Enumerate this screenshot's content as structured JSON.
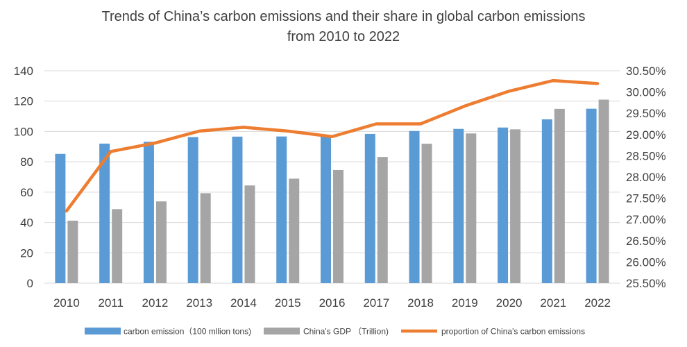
{
  "chart_data": {
    "type": "bar",
    "title_line1": "Trends of China’s carbon emissions and their share in global carbon emissions",
    "title_line2": "from 2010 to 2022",
    "categories": [
      "2010",
      "2011",
      "2012",
      "2013",
      "2014",
      "2015",
      "2016",
      "2017",
      "2018",
      "2019",
      "2020",
      "2021",
      "2022"
    ],
    "series": [
      {
        "name": "carbon emission（100 mllion tons)",
        "kind": "bar",
        "axis": "left",
        "color": "#5b9bd5",
        "values": [
          85.2,
          92.0,
          93.2,
          96.3,
          96.6,
          96.7,
          96.6,
          98.4,
          100.3,
          101.7,
          102.6,
          108.0,
          115.0
        ]
      },
      {
        "name": "China's GDP （Trillion)",
        "kind": "bar",
        "axis": "left",
        "color": "#a5a5a5",
        "values": [
          41.2,
          48.8,
          53.9,
          59.3,
          64.4,
          68.9,
          74.6,
          83.2,
          91.9,
          98.7,
          101.4,
          114.9,
          121.0
        ]
      },
      {
        "name": "proportion of China's carbon emissions",
        "kind": "line",
        "axis": "right",
        "color": "#ed7d31",
        "values": [
          0.272,
          0.286,
          0.288,
          0.2908,
          0.2917,
          0.2908,
          0.2895,
          0.2925,
          0.2925,
          0.2967,
          0.3002,
          0.3027,
          0.302
        ]
      }
    ],
    "y_left": {
      "min": 0,
      "max": 140,
      "ticks": [
        "0",
        "20",
        "40",
        "60",
        "80",
        "100",
        "120",
        "140"
      ]
    },
    "y_right": {
      "min": 0.255,
      "max": 0.305,
      "ticks": [
        "25.50%",
        "26.00%",
        "26.50%",
        "27.00%",
        "27.50%",
        "28.00%",
        "28.50%",
        "29.00%",
        "29.50%",
        "30.00%",
        "30.50%"
      ]
    },
    "grid": true,
    "legend_position": "bottom"
  }
}
